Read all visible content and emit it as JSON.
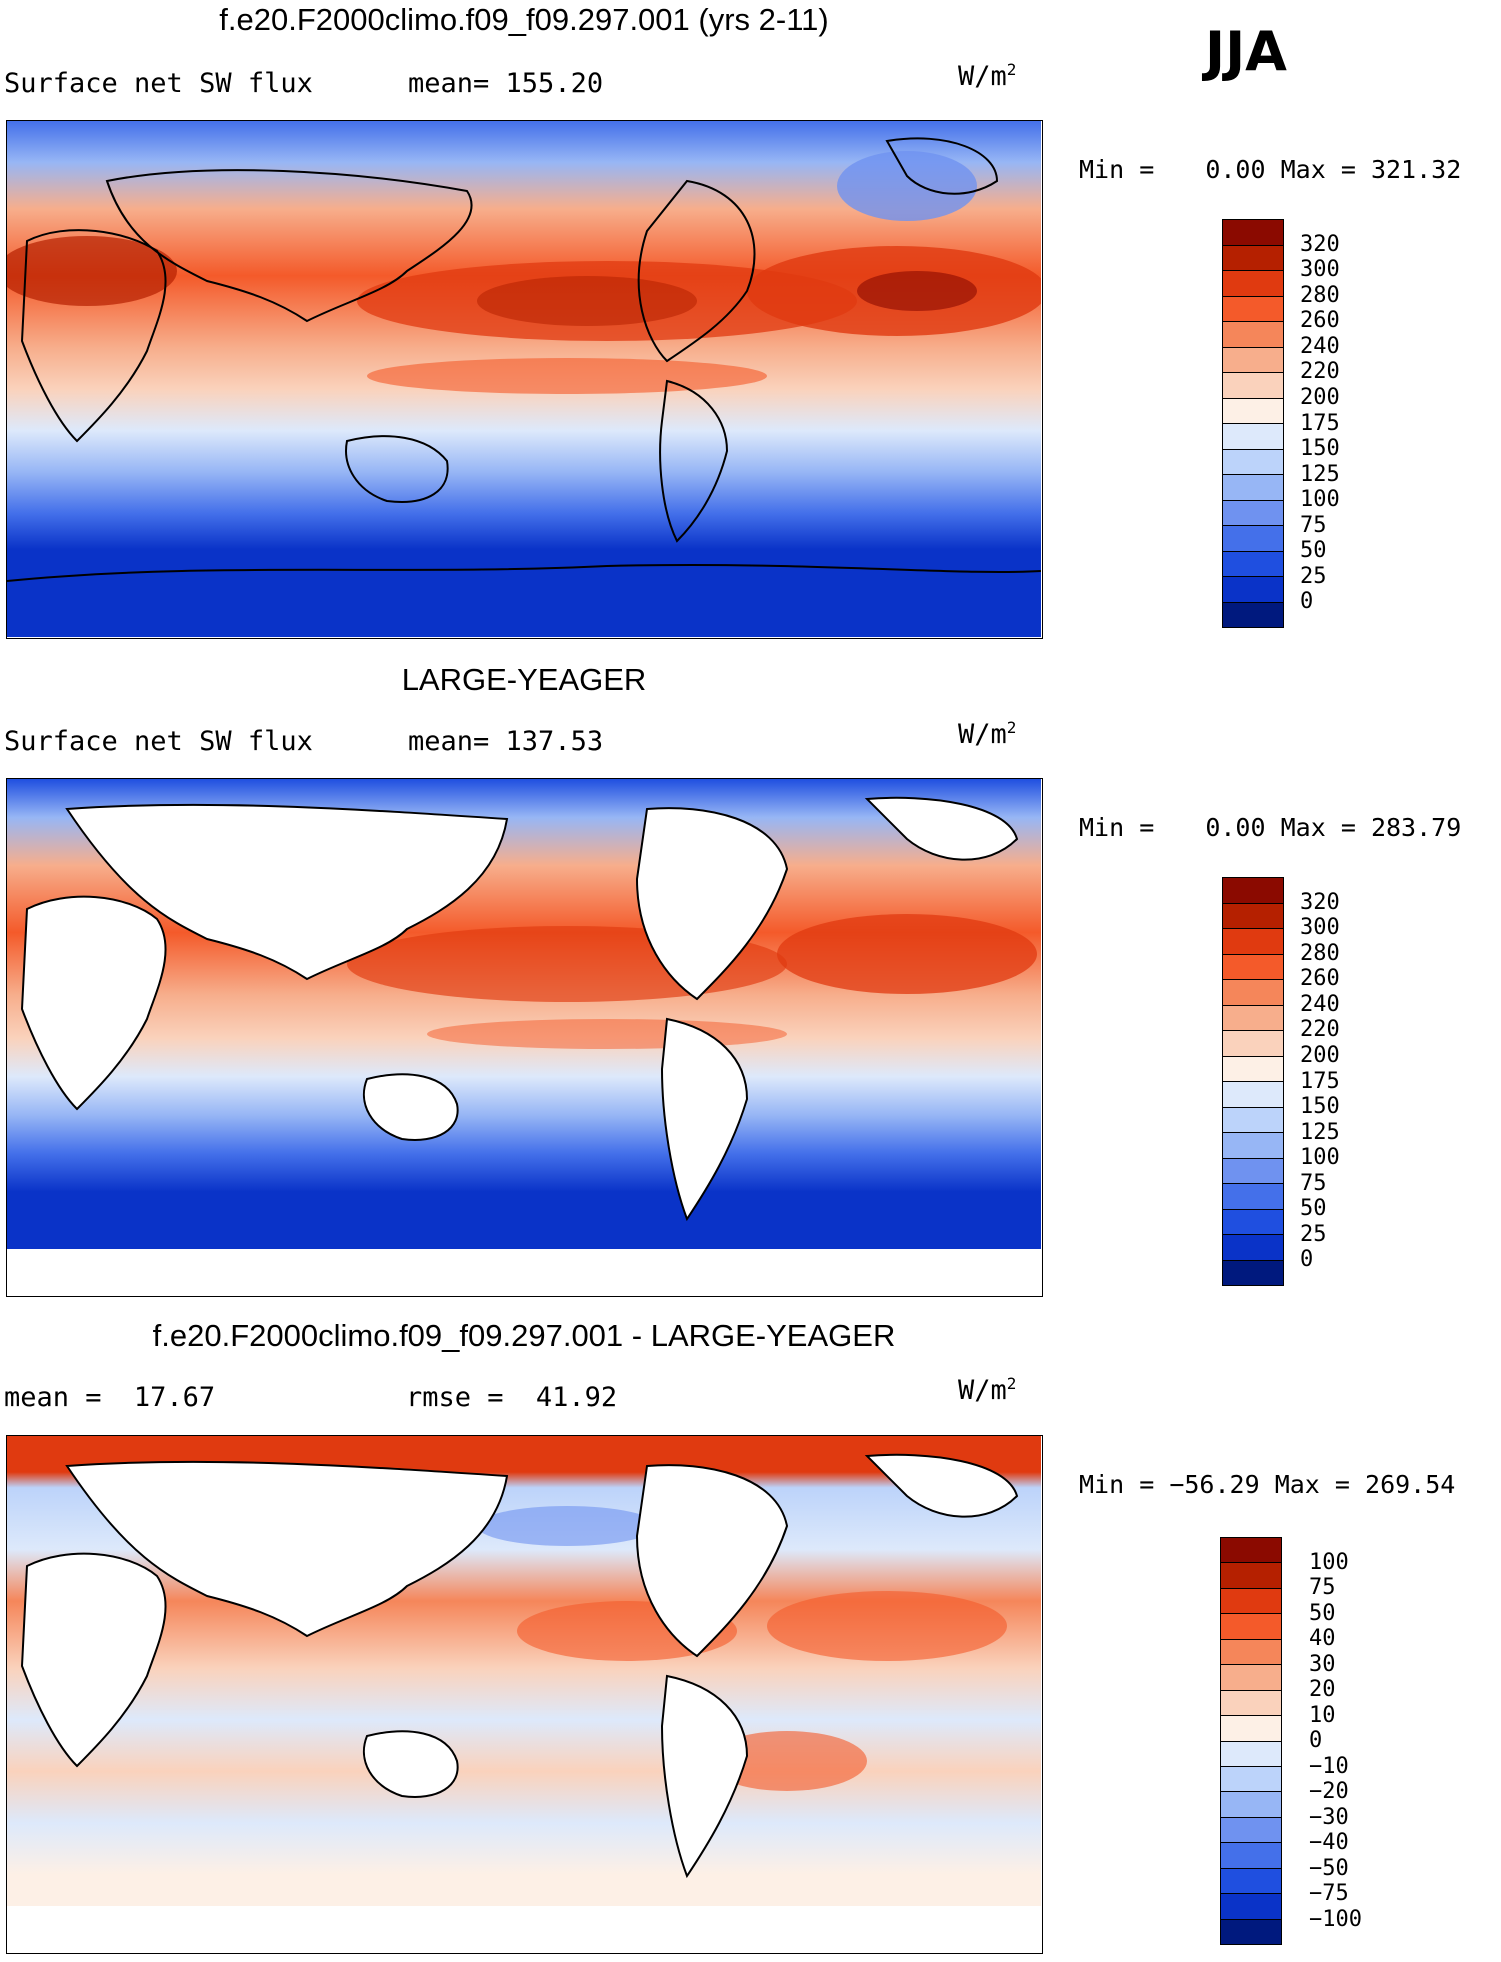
{
  "season": "JJA",
  "units_base": "W/m",
  "units_exp": "2",
  "panels": [
    {
      "title": "f.e20.F2000climo.f09_f09.297.001 (yrs 2-11)",
      "left_label": "Surface net SW flux",
      "stat_label": "mean=",
      "stat_value": "155.20",
      "min_label": "Min =",
      "min_value": "0.00",
      "max_label": "Max =",
      "max_value": "321.32",
      "colorbar_labels": [
        "320",
        "300",
        "280",
        "260",
        "240",
        "220",
        "200",
        "175",
        "150",
        "125",
        "100",
        "75",
        "50",
        "25",
        "0"
      ]
    },
    {
      "title": "LARGE-YEAGER",
      "left_label": "Surface net SW flux",
      "stat_label": "mean=",
      "stat_value": "137.53",
      "min_label": "Min =",
      "min_value": "0.00",
      "max_label": "Max =",
      "max_value": "283.79",
      "colorbar_labels": [
        "320",
        "300",
        "280",
        "260",
        "240",
        "220",
        "200",
        "175",
        "150",
        "125",
        "100",
        "75",
        "50",
        "25",
        "0"
      ]
    },
    {
      "title": "f.e20.F2000climo.f09_f09.297.001 - LARGE-YEAGER",
      "left_label": "mean =",
      "left_value": "17.67",
      "stat_label": "rmse =",
      "stat_value": "41.92",
      "min_label": "Min =",
      "min_value": "−56.29",
      "max_label": "Max =",
      "max_value": "269.54",
      "colorbar_labels": [
        "100",
        "75",
        "50",
        "40",
        "30",
        "20",
        "10",
        "0",
        "−10",
        "−20",
        "−30",
        "−40",
        "−50",
        "−75",
        "−100"
      ]
    }
  ],
  "colors": {
    "abs_scale": [
      "#8b0a00",
      "#b52000",
      "#e03a10",
      "#f45a2a",
      "#f5865a",
      "#f7ae8c",
      "#fad2bc",
      "#fdf0e6",
      "#dde9fb",
      "#bcd3fa",
      "#97b6f5",
      "#6f92f0",
      "#4470ea",
      "#1f4fe0",
      "#0a33c8",
      "#00197e"
    ],
    "diff_scale": [
      "#8b0a00",
      "#b52000",
      "#e03a10",
      "#f45a2a",
      "#f5865a",
      "#f7ae8c",
      "#fad2bc",
      "#fdf0e6",
      "#dde9fb",
      "#bcd3fa",
      "#97b6f5",
      "#6f92f0",
      "#4470ea",
      "#1f4fe0",
      "#0a33c8",
      "#00197e"
    ],
    "land": "#ffffff",
    "coast": "#000000"
  }
}
